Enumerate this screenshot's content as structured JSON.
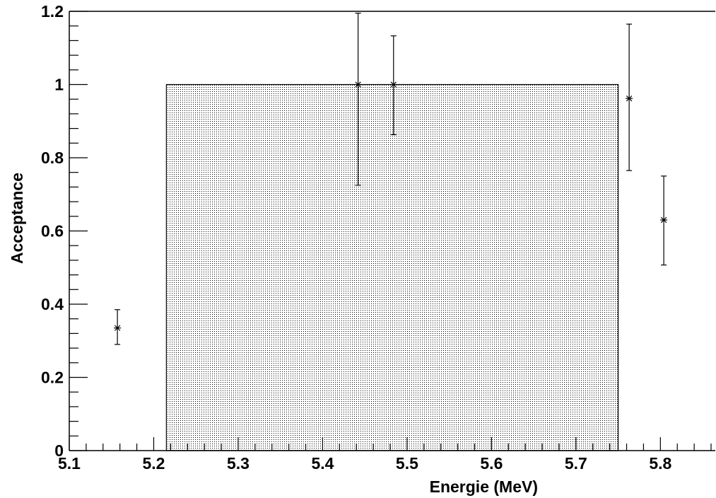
{
  "chart_data": {
    "type": "scatter",
    "title": "",
    "xlabel": "Energie (MeV)",
    "ylabel": "Acceptance",
    "xlim": [
      5.1,
      5.865
    ],
    "ylim": [
      0,
      1.2
    ],
    "x_ticks": [
      5.1,
      5.2,
      5.3,
      5.4,
      5.5,
      5.6,
      5.7,
      5.8
    ],
    "x_tick_labels": [
      "5.1",
      "5.2",
      "5.3",
      "5.4",
      "5.5",
      "5.6",
      "5.7",
      "5.8"
    ],
    "y_ticks": [
      0,
      0.2,
      0.4,
      0.6,
      0.8,
      1,
      1.2
    ],
    "y_tick_labels": [
      "0",
      "0.2",
      "0.4",
      "0.6",
      "0.8",
      "1",
      "1.2"
    ],
    "grid": false,
    "window": {
      "x_start": 5.215,
      "x_end": 5.75,
      "height": 1.0
    },
    "points": [
      {
        "x": 5.157,
        "y": 0.335,
        "err_low": 0.045,
        "err_high": 0.05
      },
      {
        "x": 5.442,
        "y": 1.0,
        "err_low": 0.275,
        "err_high": 0.195
      },
      {
        "x": 5.484,
        "y": 1.0,
        "err_low": 0.137,
        "err_high": 0.133
      },
      {
        "x": 5.763,
        "y": 0.962,
        "err_low": 0.197,
        "err_high": 0.203
      },
      {
        "x": 5.804,
        "y": 0.63,
        "err_low": 0.123,
        "err_high": 0.12
      }
    ],
    "colors": {
      "axis": "#000000",
      "markers": "#000000",
      "fill": "#000000"
    }
  }
}
